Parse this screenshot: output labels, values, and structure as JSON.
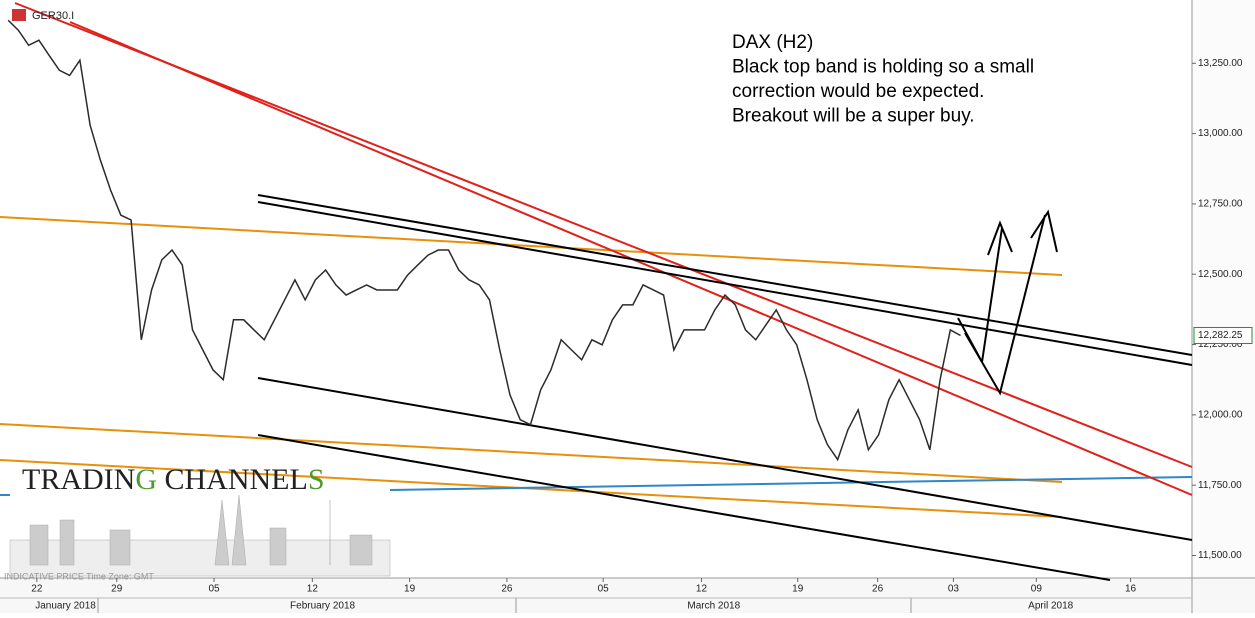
{
  "symbol": "GER30.I",
  "logo_parts": [
    "TRADIN",
    "G",
    " CHANNEL",
    "S"
  ],
  "footer_note": "INDICATIVE PRICE   Time Zone: GMT",
  "chart_data": {
    "type": "line",
    "annotation": [
      "DAX (H2)",
      "Black top band is holding so a small",
      "correction would be expected.",
      "Breakout will be a super buy."
    ],
    "color": "#2b2b2b",
    "values": [
      13403,
      13367,
      13314,
      13332,
      13278,
      13225,
      13207,
      13261,
      13030,
      12906,
      12799,
      12710,
      12693,
      12267,
      12444,
      12551,
      12586,
      12533,
      12302,
      12231,
      12160,
      12125,
      12338,
      12338,
      12302,
      12267,
      12338,
      12409,
      12480,
      12409,
      12480,
      12515,
      12462,
      12426,
      12444,
      12462,
      12444,
      12444,
      12444,
      12497,
      12533,
      12568,
      12586,
      12586,
      12515,
      12480,
      12462,
      12409,
      12231,
      12071,
      11983,
      11965,
      12089,
      12160,
      12267,
      12231,
      12196,
      12267,
      12249,
      12338,
      12391,
      12391,
      12462,
      12444,
      12426,
      12231,
      12302,
      12302,
      12302,
      12373,
      12426,
      12391,
      12302,
      12267,
      12320,
      12373,
      12302,
      12249,
      12125,
      11983,
      11894,
      11841,
      11947,
      12018,
      11876,
      11929,
      12054,
      12125,
      12054,
      11983,
      11876,
      12125,
      12302,
      12282.25
    ],
    "last_price": {
      "value": 12282.25,
      "label": "12,282.25"
    },
    "ylim": [
      11420,
      13475
    ],
    "yticks": [
      {
        "value": 11500,
        "label": "11,500.00"
      },
      {
        "value": 11750,
        "label": "11,750.00"
      },
      {
        "value": 12000,
        "label": "12,000.00"
      },
      {
        "value": 12250,
        "label": "12,250.00"
      },
      {
        "value": 12500,
        "label": "12,500.00"
      },
      {
        "value": 12750,
        "label": "12,750.00"
      },
      {
        "value": 13000,
        "label": "13,000.00"
      },
      {
        "value": 13250,
        "label": "13,250.00"
      }
    ],
    "xlim": [
      -0.8,
      115.6
    ],
    "xticks": [
      {
        "value": 2.8,
        "label": "22"
      },
      {
        "value": 10.6,
        "label": "29"
      },
      {
        "value": 20.1,
        "label": "05"
      },
      {
        "value": 29.7,
        "label": "12"
      },
      {
        "value": 39.2,
        "label": "19"
      },
      {
        "value": 48.7,
        "label": "26"
      },
      {
        "value": 58.1,
        "label": "05"
      },
      {
        "value": 67.7,
        "label": "12"
      },
      {
        "value": 77.1,
        "label": "19"
      },
      {
        "value": 84.9,
        "label": "26"
      },
      {
        "value": 92.3,
        "label": "03"
      },
      {
        "value": 100.4,
        "label": "09"
      },
      {
        "value": 109.6,
        "label": "16"
      }
    ],
    "months": [
      {
        "value": 5.6,
        "label": "January 2018"
      },
      {
        "value": 30.7,
        "label": "February 2018"
      },
      {
        "value": 68.9,
        "label": "March 2018"
      },
      {
        "value": 101.8,
        "label": "April 2018"
      }
    ]
  }
}
